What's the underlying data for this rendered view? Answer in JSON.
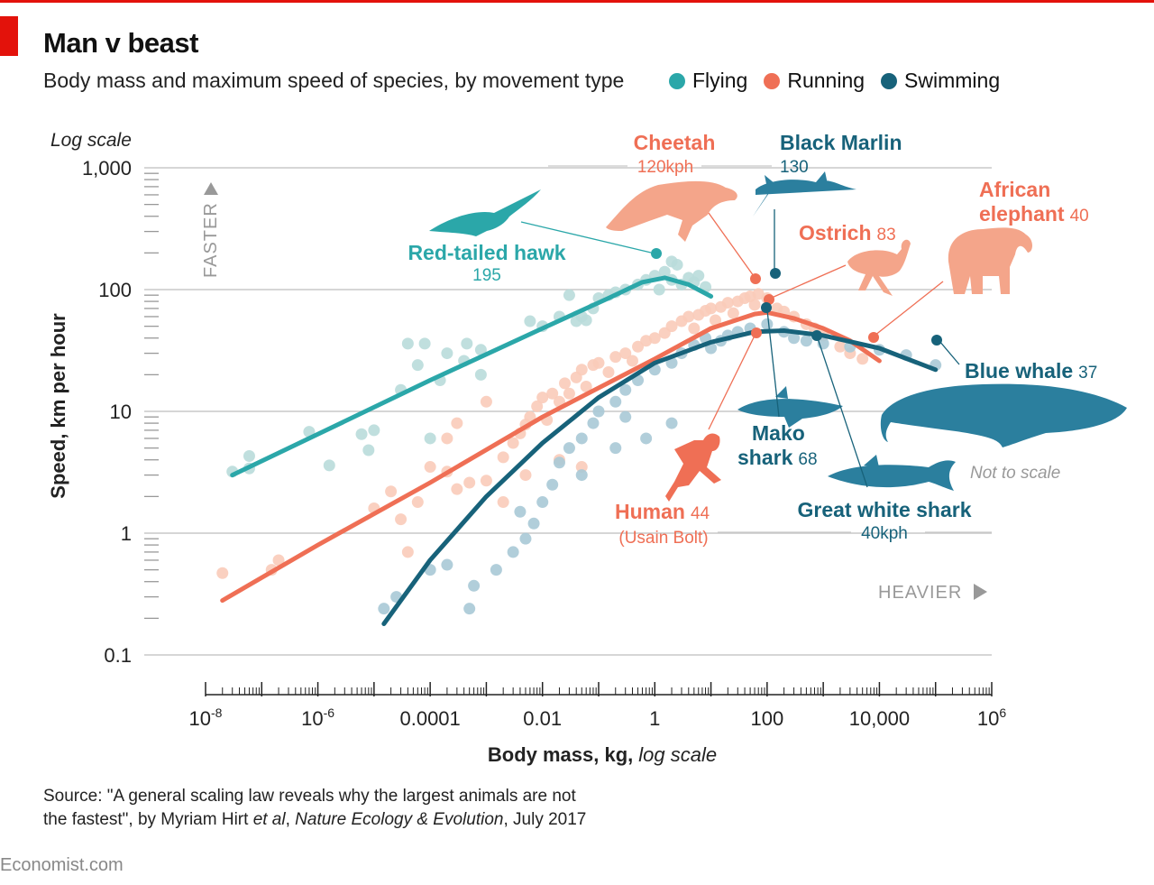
{
  "header": {
    "title": "Man v beast",
    "subtitle": "Body mass and maximum speed of species, by movement type"
  },
  "legend": [
    {
      "label": "Flying",
      "color": "#2ba7a9"
    },
    {
      "label": "Running",
      "color": "#ef6f55"
    },
    {
      "label": "Swimming",
      "color": "#17627a"
    }
  ],
  "colors": {
    "flying": "#2ba7a9",
    "flying_light": "#b9dcda",
    "running": "#ef6f55",
    "running_light": "#f9cbb9",
    "swimming": "#17627a",
    "swimming_light": "#a9c9d6",
    "grid": "#c8c8c8",
    "annotation_grey": "#999999"
  },
  "source": {
    "line1": "Source: \"A general scaling law reveals why the largest animals are not",
    "line2_a": "the fastest\", by Myriam Hirt ",
    "line2_b": "et al",
    "line2_c": ", ",
    "line2_d": "Nature Ecology & Evolution",
    "line2_e": ", July 2017"
  },
  "brand": "Economist.com",
  "chart_data": {
    "type": "scatter",
    "xscale": "log",
    "yscale": "log",
    "xlim": [
      1e-08,
      1000000.0
    ],
    "ylim": [
      0.1,
      1000
    ],
    "xlabel": "Body mass, kg,",
    "xlabel_italic": "log scale",
    "ylabel": "Speed, km per hour",
    "ylabel_note": "Log scale",
    "x_ticks": [
      {
        "value": 1e-08,
        "base": "10",
        "exp": "-8"
      },
      {
        "value": 1e-06,
        "base": "10",
        "exp": "-6"
      },
      {
        "value": 0.0001,
        "label": "0.0001"
      },
      {
        "value": 0.01,
        "label": "0.01"
      },
      {
        "value": 1,
        "label": "1"
      },
      {
        "value": 100,
        "label": "100"
      },
      {
        "value": 10000,
        "label": "10,000"
      },
      {
        "value": 1000000.0,
        "base": "10",
        "exp": "6"
      }
    ],
    "y_ticks": [
      {
        "value": 0.1,
        "label": "0.1"
      },
      {
        "value": 1,
        "label": "1"
      },
      {
        "value": 10,
        "label": "10"
      },
      {
        "value": 100,
        "label": "100"
      },
      {
        "value": 1000,
        "label": "1,000"
      }
    ],
    "axis_hints": {
      "faster": "FASTER",
      "heavier": "HEAVIER"
    },
    "not_to_scale": "Not to scale",
    "series": [
      {
        "name": "Flying",
        "fit_curve": [
          [
            3e-08,
            3
          ],
          [
            1e-06,
            6.5
          ],
          [
            0.0001,
            18
          ],
          [
            0.01,
            48
          ],
          [
            0.15,
            85
          ],
          [
            0.6,
            115
          ],
          [
            1.5,
            125
          ],
          [
            4,
            110
          ],
          [
            10,
            88
          ]
        ],
        "points": [
          [
            3e-08,
            3.2
          ],
          [
            6e-08,
            3.4
          ],
          [
            6e-08,
            4.3
          ],
          [
            7e-07,
            6.8
          ],
          [
            1.6e-06,
            3.6
          ],
          [
            6e-06,
            6.5
          ],
          [
            8e-06,
            4.8
          ],
          [
            1e-05,
            7
          ],
          [
            3e-05,
            15
          ],
          [
            4e-05,
            36
          ],
          [
            6e-05,
            24
          ],
          [
            8e-05,
            36
          ],
          [
            0.0001,
            6
          ],
          [
            0.00015,
            18
          ],
          [
            0.0002,
            30
          ],
          [
            0.0004,
            26
          ],
          [
            0.00045,
            36
          ],
          [
            0.0008,
            20
          ],
          [
            0.0008,
            32
          ],
          [
            0.006,
            55
          ],
          [
            0.01,
            50
          ],
          [
            0.02,
            60
          ],
          [
            0.03,
            90
          ],
          [
            0.04,
            55
          ],
          [
            0.05,
            60
          ],
          [
            0.06,
            56
          ],
          [
            0.08,
            70
          ],
          [
            0.1,
            85
          ],
          [
            0.15,
            90
          ],
          [
            0.2,
            95
          ],
          [
            0.3,
            100
          ],
          [
            0.5,
            110
          ],
          [
            0.7,
            120
          ],
          [
            1,
            130
          ],
          [
            1.2,
            100
          ],
          [
            1.5,
            140
          ],
          [
            2,
            120
          ],
          [
            2.5,
            160
          ],
          [
            3,
            110
          ],
          [
            4,
            125
          ],
          [
            5,
            115
          ],
          [
            6,
            130
          ],
          [
            8,
            105
          ],
          [
            2,
            170
          ]
        ]
      },
      {
        "name": "Running",
        "fit_curve": [
          [
            2e-08,
            0.28
          ],
          [
            1e-06,
            0.8
          ],
          [
            0.0001,
            2.6
          ],
          [
            0.01,
            9
          ],
          [
            1,
            27
          ],
          [
            10,
            48
          ],
          [
            60,
            63
          ],
          [
            100,
            65
          ],
          [
            300,
            58
          ],
          [
            1000,
            48
          ],
          [
            3000,
            38
          ],
          [
            10000,
            26
          ]
        ],
        "points": [
          [
            2e-08,
            0.47
          ],
          [
            1.5e-07,
            0.5
          ],
          [
            2e-07,
            0.6
          ],
          [
            1e-05,
            1.6
          ],
          [
            2e-05,
            2.2
          ],
          [
            3e-05,
            1.3
          ],
          [
            4e-05,
            0.7
          ],
          [
            6e-05,
            1.8
          ],
          [
            0.0001,
            3.5
          ],
          [
            0.0002,
            3.2
          ],
          [
            0.0003,
            2.3
          ],
          [
            0.0005,
            2.6
          ],
          [
            0.001,
            2.7
          ],
          [
            0.002,
            4.2
          ],
          [
            0.003,
            5.5
          ],
          [
            0.004,
            6.6
          ],
          [
            0.005,
            7.8
          ],
          [
            0.006,
            9
          ],
          [
            0.008,
            11
          ],
          [
            0.01,
            13
          ],
          [
            0.012,
            8.5
          ],
          [
            0.015,
            14
          ],
          [
            0.02,
            12
          ],
          [
            0.025,
            17
          ],
          [
            0.03,
            14
          ],
          [
            0.04,
            19
          ],
          [
            0.05,
            22
          ],
          [
            0.06,
            16
          ],
          [
            0.08,
            24
          ],
          [
            0.1,
            25
          ],
          [
            0.15,
            21
          ],
          [
            0.2,
            28
          ],
          [
            0.3,
            30
          ],
          [
            0.4,
            26
          ],
          [
            0.5,
            34
          ],
          [
            0.7,
            38
          ],
          [
            1,
            40
          ],
          [
            1.5,
            44
          ],
          [
            2,
            50
          ],
          [
            3,
            55
          ],
          [
            4,
            60
          ],
          [
            5,
            48
          ],
          [
            6,
            62
          ],
          [
            8,
            67
          ],
          [
            10,
            70
          ],
          [
            12,
            56
          ],
          [
            15,
            72
          ],
          [
            20,
            78
          ],
          [
            25,
            64
          ],
          [
            30,
            80
          ],
          [
            40,
            85
          ],
          [
            50,
            88
          ],
          [
            60,
            75
          ],
          [
            70,
            92
          ],
          [
            100,
            85
          ],
          [
            150,
            70
          ],
          [
            200,
            66
          ],
          [
            300,
            60
          ],
          [
            500,
            52
          ],
          [
            700,
            48
          ],
          [
            1000,
            42
          ],
          [
            2000,
            34
          ],
          [
            3000,
            30
          ],
          [
            5000,
            27
          ],
          [
            0.0002,
            6
          ],
          [
            0.001,
            12
          ],
          [
            0.005,
            3
          ],
          [
            0.02,
            4
          ],
          [
            0.05,
            3.5
          ],
          [
            0.0003,
            8
          ],
          [
            0.002,
            1.8
          ]
        ]
      },
      {
        "name": "Swimming",
        "fit_curve": [
          [
            1.5e-05,
            0.18
          ],
          [
            0.0001,
            0.6
          ],
          [
            0.001,
            2
          ],
          [
            0.01,
            5.5
          ],
          [
            0.1,
            13
          ],
          [
            1,
            25
          ],
          [
            10,
            37
          ],
          [
            60,
            45
          ],
          [
            200,
            46
          ],
          [
            1000,
            42
          ],
          [
            10000.0,
            33
          ],
          [
            100000.0,
            22
          ]
        ],
        "points": [
          [
            1.5e-05,
            0.24
          ],
          [
            2.5e-05,
            0.3
          ],
          [
            0.0001,
            0.5
          ],
          [
            0.0002,
            0.55
          ],
          [
            0.0005,
            0.24
          ],
          [
            0.0006,
            0.37
          ],
          [
            0.0015,
            0.5
          ],
          [
            0.003,
            0.7
          ],
          [
            0.005,
            0.9
          ],
          [
            0.007,
            1.2
          ],
          [
            0.01,
            1.8
          ],
          [
            0.015,
            2.5
          ],
          [
            0.02,
            3.8
          ],
          [
            0.03,
            5
          ],
          [
            0.05,
            6
          ],
          [
            0.08,
            8
          ],
          [
            0.1,
            10
          ],
          [
            0.2,
            12
          ],
          [
            0.3,
            15
          ],
          [
            0.5,
            18
          ],
          [
            1,
            22
          ],
          [
            2,
            25
          ],
          [
            3,
            30
          ],
          [
            5,
            35
          ],
          [
            8,
            40
          ],
          [
            10,
            33
          ],
          [
            15,
            38
          ],
          [
            20,
            42
          ],
          [
            30,
            45
          ],
          [
            50,
            48
          ],
          [
            100,
            52
          ],
          [
            200,
            45
          ],
          [
            300,
            40
          ],
          [
            500,
            38
          ],
          [
            1000,
            36
          ],
          [
            3000,
            34
          ],
          [
            10000,
            32
          ],
          [
            30000,
            29
          ],
          [
            100000.0,
            24
          ],
          [
            0.004,
            1.5
          ],
          [
            0.05,
            3
          ],
          [
            0.2,
            5
          ],
          [
            0.7,
            6
          ],
          [
            2,
            8
          ],
          [
            0.3,
            9
          ]
        ]
      }
    ],
    "highlights": [
      {
        "name": "Red-tailed hawk",
        "value": "195",
        "mass": 1.1,
        "speed": 195,
        "group": "Flying"
      },
      {
        "name": "Cheetah",
        "value": "120kph",
        "mass": 60,
        "speed": 120,
        "group": "Running"
      },
      {
        "name": "Black Marlin",
        "value": "130",
        "mass": 150,
        "speed": 130,
        "group": "Swimming"
      },
      {
        "name": "Ostrich",
        "value": "83",
        "mass": 110,
        "speed": 83,
        "group": "Running"
      },
      {
        "name": "African elephant",
        "value": "40",
        "mass": 8000,
        "speed": 40,
        "group": "Running"
      },
      {
        "name": "Blue whale",
        "value": "37",
        "mass": 100000.0,
        "speed": 37,
        "group": "Swimming"
      },
      {
        "name": "Mako shark",
        "value": "68",
        "mass": 100,
        "speed": 68,
        "group": "Swimming"
      },
      {
        "name": "Great white shark",
        "value": "40kph",
        "mass": 300,
        "speed": 40,
        "group": "Swimming"
      },
      {
        "name": "Human",
        "value": "44",
        "note": "(Usain Bolt)",
        "mass": 80,
        "speed": 44,
        "group": "Running"
      }
    ],
    "callouts": {
      "hawk_name": "Red-tailed hawk",
      "hawk_value": "195",
      "cheetah_name": "Cheetah",
      "cheetah_value": "120kph",
      "marlin_name": "Black Marlin",
      "marlin_value": "130",
      "ostrich_name": "Ostrich",
      "ostrich_value": "83",
      "elephant_name1": "African",
      "elephant_name2": "elephant",
      "elephant_value": "40",
      "whale_name": "Blue whale",
      "whale_value": "37",
      "mako_name1": "Mako",
      "mako_name2": "shark",
      "mako_value": "68",
      "gws_name": "Great white shark",
      "gws_value": "40kph",
      "human_name": "Human",
      "human_value": "44",
      "human_note": "(Usain Bolt)"
    }
  }
}
